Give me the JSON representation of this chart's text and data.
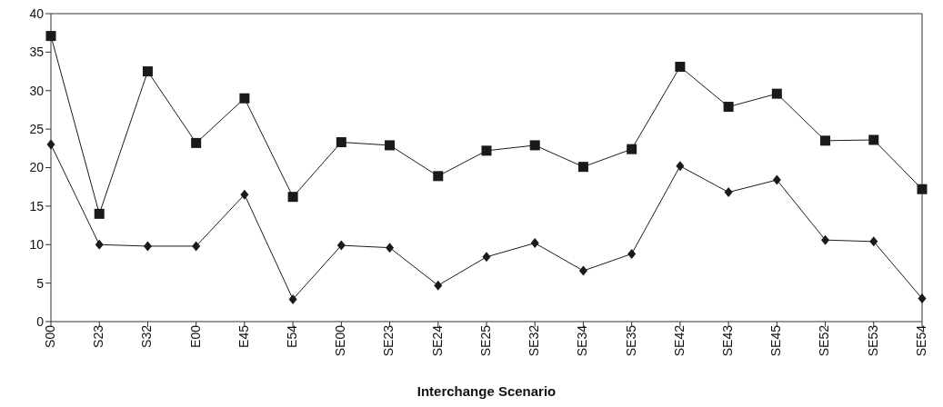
{
  "chart_data": {
    "type": "line",
    "xlabel": "Interchange Scenario",
    "categories": [
      "S00",
      "S23",
      "S32",
      "E00",
      "E45",
      "E54",
      "SE00",
      "SE23",
      "SE24",
      "SE25",
      "SE32",
      "SE34",
      "SE35",
      "SE42",
      "SE43",
      "SE45",
      "SE52",
      "SE53",
      "SE54"
    ],
    "series": [
      {
        "color": "#1a1a1a",
        "marker": "square",
        "values": [
          37.1,
          14,
          32.5,
          23.2,
          29,
          16.2,
          23.3,
          22.9,
          18.9,
          22.2,
          22.9,
          20.1,
          22.4,
          33.1,
          27.9,
          29.6,
          23.5,
          23.6,
          17.2
        ]
      },
      {
        "color": "#1a1a1a",
        "marker": "diamond",
        "values": [
          23,
          10,
          9.8,
          9.8,
          16.5,
          2.9,
          9.9,
          9.6,
          4.7,
          8.4,
          10.2,
          6.6,
          8.8,
          20.2,
          16.8,
          18.4,
          10.6,
          10.4,
          3.0
        ]
      }
    ],
    "ylim": [
      0,
      40
    ],
    "yticks": [
      0,
      5,
      10,
      15,
      20,
      25,
      30,
      35,
      40
    ],
    "line_style": "solid"
  }
}
